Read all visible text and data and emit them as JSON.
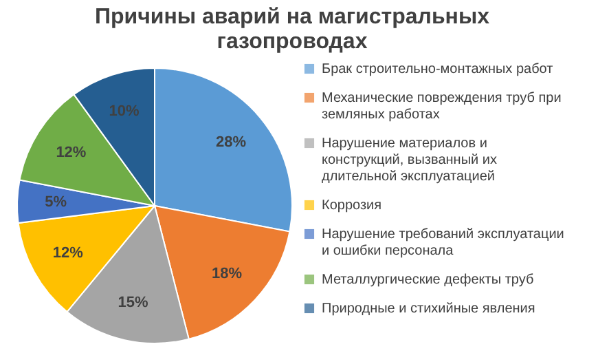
{
  "chart_data": {
    "type": "pie",
    "title": "Причины аварий на магистральных газопроводах",
    "categories": [
      "Брак строительно-монтажных работ",
      "Механические повреждения труб при земляных работах",
      "Нарушение материалов и конструкций, вызванный их длительной эксплуатацией",
      "Коррозия",
      "Нарушение требований эксплуатации  и ошибки персонала",
      "Металлургические  дефекты труб",
      "Природные и стихийные явления"
    ],
    "values": [
      28,
      18,
      15,
      12,
      5,
      12,
      10
    ],
    "value_labels": [
      "28%",
      "18%",
      "15%",
      "12%",
      "5%",
      "12%",
      "10%"
    ],
    "colors": [
      "#5b9bd5",
      "#ed7d31",
      "#a5a5a5",
      "#ffc000",
      "#4472c4",
      "#70ad47",
      "#255e91"
    ],
    "legend": "right"
  }
}
